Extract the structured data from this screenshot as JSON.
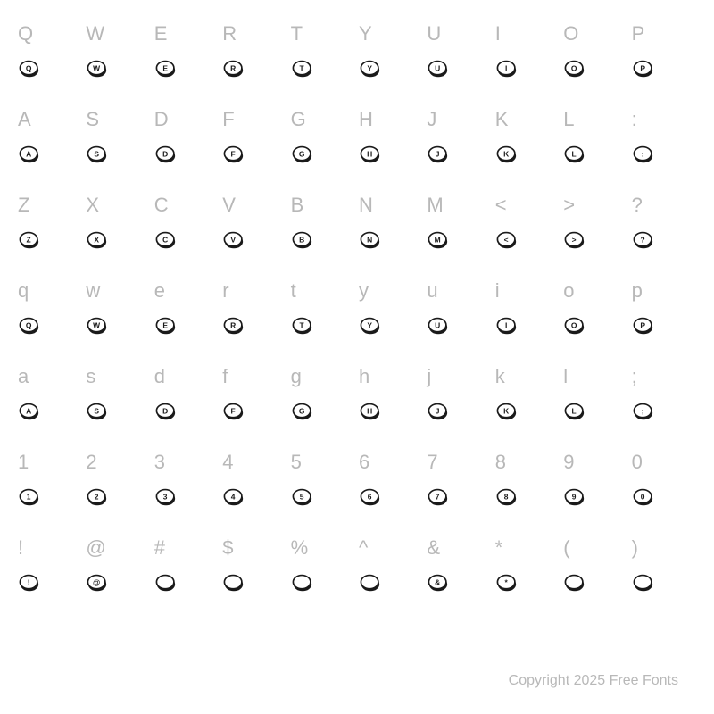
{
  "label_color": "#b8b8b8",
  "glyph_stroke": "#1a1a1a",
  "glyph_fill_light": "#ffffff",
  "glyph_fill_dark": "#1a1a1a",
  "background": "#ffffff",
  "label_fontsize": 22,
  "glyph_size": 26,
  "grid_cols": 10,
  "grid_rows": 7,
  "rows": [
    {
      "labels": [
        "Q",
        "W",
        "E",
        "R",
        "T",
        "Y",
        "U",
        "I",
        "O",
        "P"
      ],
      "glyph_letters": [
        "Q",
        "W",
        "E",
        "R",
        "T",
        "Y",
        "U",
        "I",
        "O",
        "P"
      ]
    },
    {
      "labels": [
        "A",
        "S",
        "D",
        "F",
        "G",
        "H",
        "J",
        "K",
        "L",
        ":"
      ],
      "glyph_letters": [
        "A",
        "S",
        "D",
        "F",
        "G",
        "H",
        "J",
        "K",
        "L",
        ":"
      ]
    },
    {
      "labels": [
        "Z",
        "X",
        "C",
        "V",
        "B",
        "N",
        "M",
        "<",
        ">",
        "?"
      ],
      "glyph_letters": [
        "Z",
        "X",
        "C",
        "V",
        "B",
        "N",
        "M",
        "<",
        ">",
        "?"
      ]
    },
    {
      "labels": [
        "q",
        "w",
        "e",
        "r",
        "t",
        "y",
        "u",
        "i",
        "o",
        "p"
      ],
      "glyph_letters": [
        "Q",
        "W",
        "E",
        "R",
        "T",
        "Y",
        "U",
        "I",
        "O",
        "P"
      ]
    },
    {
      "labels": [
        "a",
        "s",
        "d",
        "f",
        "g",
        "h",
        "j",
        "k",
        "l",
        ";"
      ],
      "glyph_letters": [
        "A",
        "S",
        "D",
        "F",
        "G",
        "H",
        "J",
        "K",
        "L",
        ";"
      ]
    },
    {
      "labels": [
        "1",
        "2",
        "3",
        "4",
        "5",
        "6",
        "7",
        "8",
        "9",
        "0"
      ],
      "glyph_letters": [
        "1",
        "2",
        "3",
        "4",
        "5",
        "6",
        "7",
        "8",
        "9",
        "0"
      ]
    },
    {
      "labels": [
        "!",
        "@",
        "#",
        "$",
        "%",
        "^",
        "&",
        "*",
        "(",
        ")"
      ],
      "glyph_letters": [
        "!",
        "@",
        "",
        "",
        "",
        "",
        "&",
        "*",
        "",
        ""
      ]
    }
  ],
  "copyright": "Copyright 2025 Free Fonts"
}
